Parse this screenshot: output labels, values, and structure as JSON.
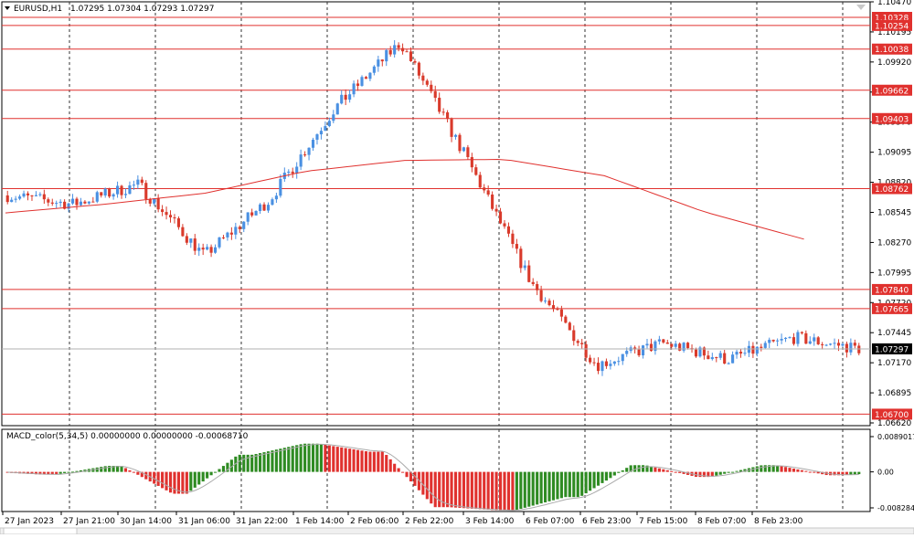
{
  "symbol": {
    "expand_icon": "triangle-down-icon",
    "label": "EURUSD,H1"
  },
  "ohlc": {
    "open": "1.07295",
    "high": "1.07304",
    "low": "1.07293",
    "close": "1.07297"
  },
  "price_axis": {
    "ticks": [
      "1.10470",
      "1.10195",
      "1.09920",
      "1.09645",
      "1.09370",
      "1.09095",
      "1.08820",
      "1.08545",
      "1.08270",
      "1.07995",
      "1.07720",
      "1.07445",
      "1.07170",
      "1.06895",
      "1.06620"
    ],
    "range": [
      1.066,
      1.1047
    ]
  },
  "levels": [
    {
      "label": "1.10328",
      "value": 1.10328
    },
    {
      "label": "1.10254",
      "value": 1.10254
    },
    {
      "label": "1.10038",
      "value": 1.10038
    },
    {
      "label": "1.09662",
      "value": 1.09662
    },
    {
      "label": "1.09403",
      "value": 1.09403
    },
    {
      "label": "1.08762",
      "value": 1.08762
    },
    {
      "label": "1.07840",
      "value": 1.0784
    },
    {
      "label": "1.07665",
      "value": 1.07665
    },
    {
      "label": "1.06700",
      "value": 1.067
    }
  ],
  "current_price": {
    "label": "1.07297",
    "value": 1.07297
  },
  "time_axis": [
    "27 Jan 2023",
    "27 Jan 21:00",
    "30 Jan 14:00",
    "31 Jan 06:00",
    "31 Jan 22:00",
    "1 Feb 14:00",
    "2 Feb 06:00",
    "2 Feb 22:00",
    "3 Feb 14:00",
    "6 Feb 07:00",
    "6 Feb 23:00",
    "7 Feb 15:00",
    "8 Feb 07:00",
    "8 Feb 23:00"
  ],
  "macd": {
    "label": "MACD_color(5,34,5) 0.00000000 0.00000000 -0.00068710",
    "axis_ticks": [
      "0.0089017",
      "0.00",
      "-0.0082846"
    ],
    "range": [
      -0.0082846,
      0.0089017
    ]
  },
  "colors": {
    "bull": "#4a90e2",
    "bear": "#d93a2b",
    "level": "#e0312e",
    "ma": "#e0312e",
    "macd_up": "#2e8b22",
    "macd_down": "#e0312e",
    "signal": "#aaaaaa"
  },
  "chart_data": {
    "type": "candlestick",
    "symbol": "EURUSD",
    "timeframe": "H1",
    "price_range": [
      1.0662,
      1.1047
    ],
    "key_path": [
      {
        "time": "27 Jan 2023",
        "price": 1.087
      },
      {
        "time": "27 Jan 21:00",
        "price": 1.0862
      },
      {
        "time": "30 Jan 14:00",
        "price": 1.088
      },
      {
        "time": "31 Jan 06:00",
        "price": 1.0815
      },
      {
        "time": "31 Jan 22:00",
        "price": 1.0866
      },
      {
        "time": "1 Feb 14:00",
        "price": 1.095
      },
      {
        "time": "2 Feb 06:00",
        "price": 1.101
      },
      {
        "time": "2 Feb 22:00",
        "price": 1.0905
      },
      {
        "time": "3 Feb 14:00",
        "price": 1.079
      },
      {
        "time": "6 Feb 07:00",
        "price": 1.0715
      },
      {
        "time": "6 Feb 23:00",
        "price": 1.0735
      },
      {
        "time": "7 Feb 15:00",
        "price": 1.072
      },
      {
        "time": "8 Feb 07:00",
        "price": 1.074
      },
      {
        "time": "8 Feb 23:00",
        "price": 1.073
      }
    ],
    "moving_average": [
      1.0854,
      1.0862,
      1.0872,
      1.0892,
      1.0902,
      1.0903,
      1.0888,
      1.0855,
      1.083
    ],
    "macd_range": [
      -0.0082846,
      0.0089017
    ]
  }
}
